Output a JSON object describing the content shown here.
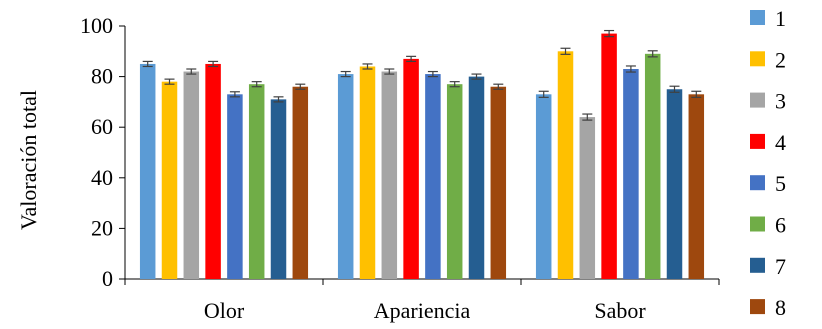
{
  "chart_data": {
    "type": "bar",
    "ylabel": "Valoración total",
    "xlabel": "",
    "title": "",
    "ylim": [
      0,
      100
    ],
    "yticks": [
      0,
      20,
      40,
      60,
      80,
      100
    ],
    "grid": false,
    "legend_position": "right",
    "categories": [
      "Olor",
      "Apariencia",
      "Sabor"
    ],
    "series": [
      {
        "name": "1",
        "color": "#5b9bd5",
        "values": [
          85,
          81,
          73
        ],
        "errors": [
          1,
          1,
          1.2
        ]
      },
      {
        "name": "2",
        "color": "#ffc000",
        "values": [
          78,
          84,
          90
        ],
        "errors": [
          1,
          1,
          1.2
        ]
      },
      {
        "name": "3",
        "color": "#a5a5a5",
        "values": [
          82,
          82,
          64
        ],
        "errors": [
          1,
          1,
          1.2
        ]
      },
      {
        "name": "4",
        "color": "#ff0000",
        "values": [
          85,
          87,
          97
        ],
        "errors": [
          1,
          1,
          1.2
        ]
      },
      {
        "name": "5",
        "color": "#4472c4",
        "values": [
          73,
          81,
          83
        ],
        "errors": [
          1,
          1,
          1.2
        ]
      },
      {
        "name": "6",
        "color": "#70ad47",
        "values": [
          77,
          77,
          89
        ],
        "errors": [
          1,
          1,
          1.2
        ]
      },
      {
        "name": "7",
        "color": "#255e91",
        "values": [
          71,
          80,
          75
        ],
        "errors": [
          1,
          1,
          1.2
        ]
      },
      {
        "name": "8",
        "color": "#9e480e",
        "values": [
          76,
          76,
          73
        ],
        "errors": [
          1,
          1,
          1.2
        ]
      }
    ]
  }
}
